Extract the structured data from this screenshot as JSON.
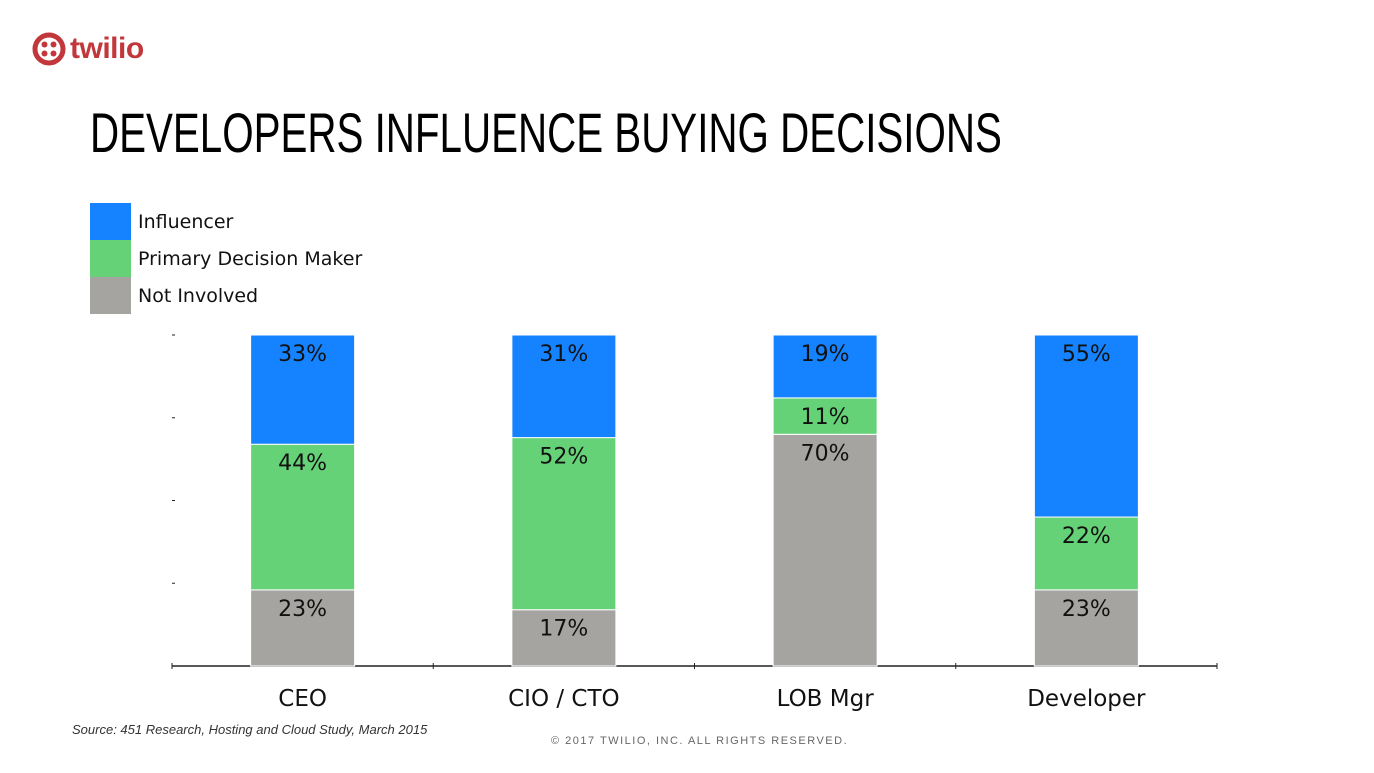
{
  "logo": {
    "text": "twilio",
    "color": "#c1373b"
  },
  "title": "DEVELOPERS INFLUENCE BUYING DECISIONS",
  "footer": {
    "source": "Source: 451 Research, Hosting and Cloud Study, March 2015",
    "copyright": "© 2017 TWILIO, INC. ALL RIGHTS RESERVED."
  },
  "chart_data": {
    "type": "bar",
    "stacked": true,
    "title": "",
    "xlabel": "",
    "ylabel": "",
    "ylim": [
      0,
      100
    ],
    "grid": false,
    "legend_placement": "top-left",
    "categories": [
      "CEO",
      "CIO / CTO",
      "LOB Mgr",
      "Developer"
    ],
    "series": [
      {
        "name": "Not Involved",
        "color": "#a6a4a0",
        "values": [
          23,
          17,
          70,
          23
        ]
      },
      {
        "name": "Primary Decision Maker",
        "color": "#66d277",
        "values": [
          44,
          52,
          11,
          22
        ]
      },
      {
        "name": "Influencer",
        "color": "#1583ff",
        "values": [
          33,
          31,
          19,
          55
        ]
      }
    ],
    "legend_order": [
      "Influencer",
      "Primary Decision Maker",
      "Not Involved"
    ]
  }
}
